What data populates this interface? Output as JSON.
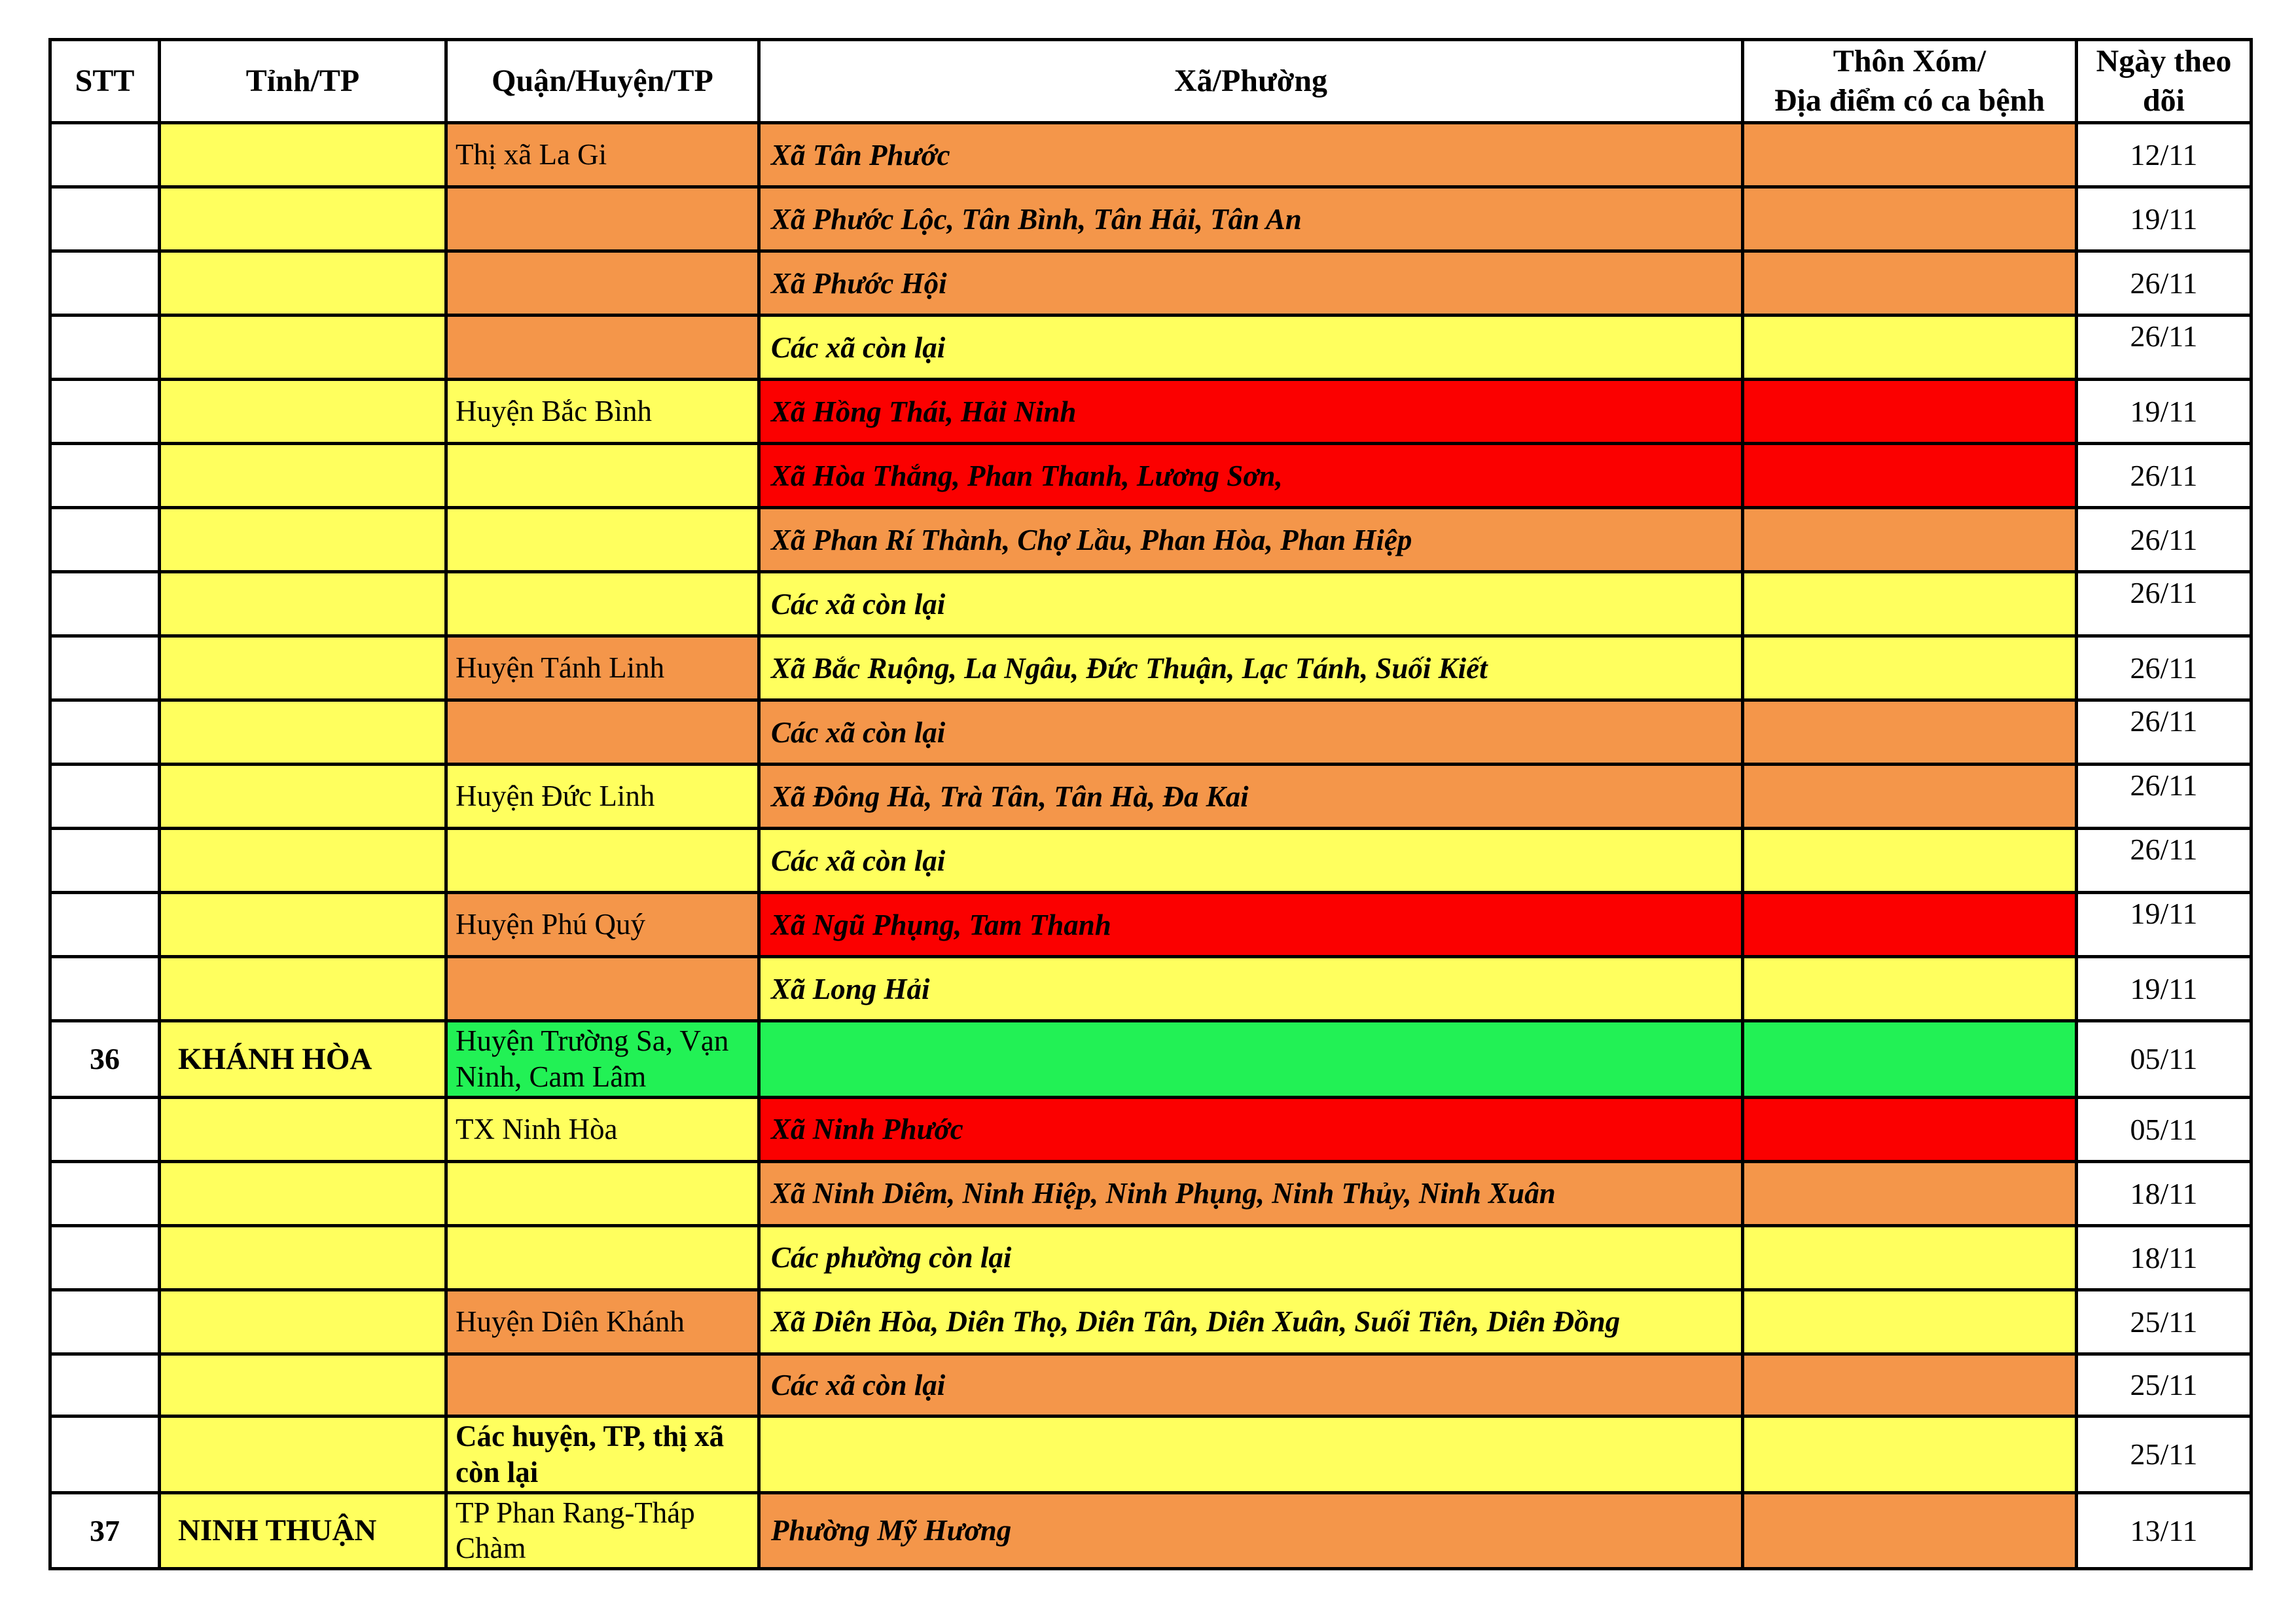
{
  "table": {
    "header": [
      "STT",
      "Tỉnh/TP",
      "Quận/Huyện/TP",
      "Xã/Phường",
      "Thôn Xóm/\nĐịa điểm có ca bệnh",
      "Ngày theo dõi"
    ],
    "colors": {
      "yellow": "#FFFF5E",
      "orange": "#F4964A",
      "red": "#FB0000",
      "green": "#22F155",
      "white": "#FFFFFF"
    },
    "rows": [
      {
        "stt": "",
        "tinh": "",
        "quan": "Thị xã La Gi",
        "quan_color": "orange",
        "quan_bold": false,
        "xa": "Xã Tân Phước",
        "xa_color": "orange",
        "thon_color": "orange",
        "date": "12/11",
        "date_align": "middle",
        "h": 98
      },
      {
        "stt": "",
        "tinh": "",
        "quan": "",
        "quan_color": "orange",
        "quan_bold": false,
        "xa": "Xã Phước Lộc, Tân Bình, Tân Hải, Tân An",
        "xa_color": "orange",
        "thon_color": "orange",
        "date": "19/11",
        "date_align": "middle",
        "h": 98
      },
      {
        "stt": "",
        "tinh": "",
        "quan": "",
        "quan_color": "orange",
        "quan_bold": false,
        "xa": "Xã Phước Hội",
        "xa_color": "orange",
        "thon_color": "orange",
        "date": "26/11",
        "date_align": "middle",
        "h": 98
      },
      {
        "stt": "",
        "tinh": "",
        "quan": "",
        "quan_color": "orange",
        "quan_bold": false,
        "xa": "Các xã còn lại",
        "xa_color": "yellow",
        "thon_color": "yellow",
        "date": "26/11",
        "date_align": "top",
        "h": 98
      },
      {
        "stt": "",
        "tinh": "",
        "quan": "Huyện Bắc Bình",
        "quan_color": "yellow",
        "quan_bold": false,
        "xa": "Xã Hồng Thái, Hải Ninh",
        "xa_color": "red",
        "thon_color": "red",
        "date": "19/11",
        "date_align": "middle",
        "h": 98
      },
      {
        "stt": "",
        "tinh": "",
        "quan": "",
        "quan_color": "yellow",
        "quan_bold": false,
        "xa": "Xã Hòa Thắng, Phan Thanh, Lương Sơn,",
        "xa_color": "red",
        "thon_color": "red",
        "date": "26/11",
        "date_align": "middle",
        "h": 98
      },
      {
        "stt": "",
        "tinh": "",
        "quan": "",
        "quan_color": "yellow",
        "quan_bold": false,
        "xa": "Xã Phan Rí Thành, Chợ Lầu, Phan Hòa, Phan Hiệp",
        "xa_color": "orange",
        "thon_color": "orange",
        "date": "26/11",
        "date_align": "middle",
        "h": 98
      },
      {
        "stt": "",
        "tinh": "",
        "quan": "",
        "quan_color": "yellow",
        "quan_bold": false,
        "xa": "Các xã còn lại",
        "xa_color": "yellow",
        "thon_color": "yellow",
        "date": "26/11",
        "date_align": "top",
        "h": 98
      },
      {
        "stt": "",
        "tinh": "",
        "quan": "Huyện Tánh Linh",
        "quan_color": "orange",
        "quan_bold": false,
        "xa": "Xã Bắc Ruộng, La Ngâu, Đức Thuận, Lạc Tánh, Suối Kiết",
        "xa_color": "yellow",
        "thon_color": "yellow",
        "date": "26/11",
        "date_align": "middle",
        "h": 98
      },
      {
        "stt": "",
        "tinh": "",
        "quan": "",
        "quan_color": "orange",
        "quan_bold": false,
        "xa": "Các xã còn lại",
        "xa_color": "orange",
        "thon_color": "orange",
        "date": "26/11",
        "date_align": "top",
        "h": 98
      },
      {
        "stt": "",
        "tinh": "",
        "quan": "Huyện Đức Linh",
        "quan_color": "yellow",
        "quan_bold": false,
        "xa": "Xã Đông Hà, Trà Tân, Tân Hà, Đa Kai",
        "xa_color": "orange",
        "thon_color": "orange",
        "date": "26/11",
        "date_align": "top",
        "h": 98
      },
      {
        "stt": "",
        "tinh": "",
        "quan": "",
        "quan_color": "yellow",
        "quan_bold": false,
        "xa": "Các xã còn lại",
        "xa_color": "yellow",
        "thon_color": "yellow",
        "date": "26/11",
        "date_align": "top",
        "h": 98
      },
      {
        "stt": "",
        "tinh": "",
        "quan": "Huyện Phú Quý",
        "quan_color": "orange",
        "quan_bold": false,
        "xa": "Xã Ngũ Phụng, Tam Thanh",
        "xa_color": "red",
        "thon_color": "red",
        "date": "19/11",
        "date_align": "top",
        "h": 98
      },
      {
        "stt": "",
        "tinh": "",
        "quan": "",
        "quan_color": "orange",
        "quan_bold": false,
        "xa": "Xã Long Hải",
        "xa_color": "yellow",
        "thon_color": "yellow",
        "date": "19/11",
        "date_align": "middle",
        "h": 98
      },
      {
        "stt": "36",
        "tinh": "KHÁNH HÒA",
        "quan": "Huyện Trường Sa, Vạn Ninh, Cam Lâm",
        "quan_color": "green",
        "quan_bold": false,
        "xa": "",
        "xa_color": "green",
        "thon_color": "green",
        "date": "05/11",
        "date_align": "middle",
        "h": 116
      },
      {
        "stt": "",
        "tinh": "",
        "quan": "TX Ninh Hòa",
        "quan_color": "yellow",
        "quan_bold": false,
        "xa": "Xã Ninh Phước",
        "xa_color": "red",
        "thon_color": "red",
        "date": "05/11",
        "date_align": "middle",
        "h": 98
      },
      {
        "stt": "",
        "tinh": "",
        "quan": "",
        "quan_color": "yellow",
        "quan_bold": false,
        "xa": "Xã Ninh Diêm, Ninh Hiệp, Ninh Phụng, Ninh Thủy, Ninh Xuân",
        "xa_color": "orange",
        "thon_color": "orange",
        "date": "18/11",
        "date_align": "middle",
        "h": 98
      },
      {
        "stt": "",
        "tinh": "",
        "quan": "",
        "quan_color": "yellow",
        "quan_bold": false,
        "xa": "Các phường còn lại",
        "xa_color": "yellow",
        "thon_color": "yellow",
        "date": "18/11",
        "date_align": "middle",
        "h": 98
      },
      {
        "stt": "",
        "tinh": "",
        "quan": "Huyện Diên Khánh",
        "quan_color": "orange",
        "quan_bold": false,
        "xa": "Xã Diên Hòa, Diên Thọ, Diên Tân, Diên Xuân, Suối Tiên, Diên Đồng",
        "xa_color": "yellow",
        "thon_color": "yellow",
        "date": "25/11",
        "date_align": "middle",
        "h": 98
      },
      {
        "stt": "",
        "tinh": "",
        "quan": "",
        "quan_color": "orange",
        "quan_bold": false,
        "xa": "Các xã còn lại",
        "xa_color": "orange",
        "thon_color": "orange",
        "date": "25/11",
        "date_align": "middle",
        "h": 95
      },
      {
        "stt": "",
        "tinh": "",
        "quan": "Các huyện, TP, thị xã còn lại",
        "quan_color": "yellow",
        "quan_bold": true,
        "xa": "",
        "xa_color": "yellow",
        "thon_color": "yellow",
        "date": "25/11",
        "date_align": "middle",
        "h": 116
      },
      {
        "stt": "37",
        "tinh": "NINH THUẬN",
        "quan": "TP Phan Rang-Tháp Chàm",
        "quan_color": "yellow",
        "quan_bold": false,
        "xa": "Phường Mỹ Hương",
        "xa_color": "orange",
        "thon_color": "orange",
        "date": "13/11",
        "date_align": "middle",
        "h": 114
      }
    ]
  }
}
